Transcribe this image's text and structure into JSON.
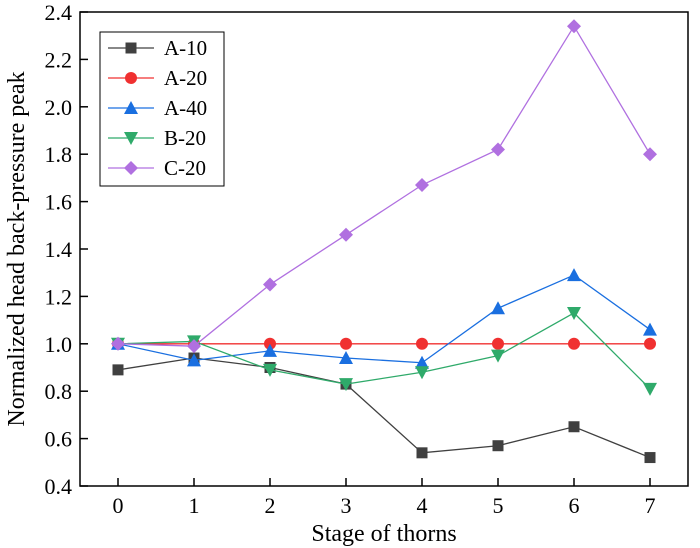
{
  "chart_data": {
    "type": "line",
    "title": "",
    "xlabel": "Stage of thorns",
    "ylabel": "Normalized head back-pressure peak",
    "x": [
      0,
      1,
      2,
      3,
      4,
      5,
      6,
      7
    ],
    "xlim": [
      -0.5,
      7.5
    ],
    "ylim": [
      0.4,
      2.4
    ],
    "x_ticks": [
      "0",
      "1",
      "2",
      "3",
      "4",
      "5",
      "6",
      "7"
    ],
    "y_ticks": [
      "0.4",
      "0.6",
      "0.8",
      "1.0",
      "1.2",
      "1.4",
      "1.6",
      "1.8",
      "2.0",
      "2.2",
      "2.4"
    ],
    "y_tick_values": [
      0.4,
      0.6,
      0.8,
      1.0,
      1.2,
      1.4,
      1.6,
      1.8,
      2.0,
      2.2,
      2.4
    ],
    "legend_position": "top-left",
    "series": [
      {
        "name": "A-10",
        "marker": "square",
        "color": "#404040",
        "values": [
          0.89,
          0.94,
          0.9,
          0.83,
          0.54,
          0.57,
          0.65,
          0.52
        ]
      },
      {
        "name": "A-20",
        "marker": "circle",
        "color": "#f03030",
        "values": [
          1.0,
          1.0,
          1.0,
          1.0,
          1.0,
          1.0,
          1.0,
          1.0
        ]
      },
      {
        "name": "A-40",
        "marker": "triangle-up",
        "color": "#1a6fe0",
        "values": [
          1.0,
          0.93,
          0.97,
          0.94,
          0.92,
          1.15,
          1.29,
          1.06
        ]
      },
      {
        "name": "B-20",
        "marker": "triangle-down",
        "color": "#2faa6a",
        "values": [
          1.0,
          1.01,
          0.89,
          0.83,
          0.88,
          0.95,
          1.13,
          0.81
        ]
      },
      {
        "name": "C-20",
        "marker": "diamond",
        "color": "#b070e0",
        "values": [
          1.0,
          0.99,
          1.25,
          1.46,
          1.67,
          1.82,
          2.34,
          1.8
        ]
      }
    ]
  }
}
